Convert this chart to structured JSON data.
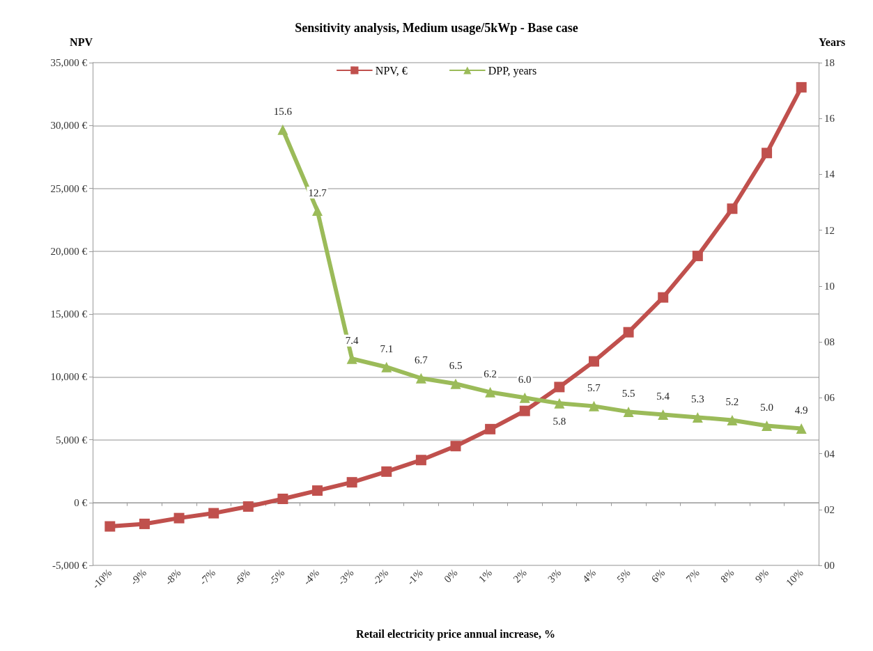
{
  "chart_data": {
    "type": "line",
    "title": "Sensitivity analysis, Medium usage/5kWp - Base case",
    "xlabel": "Retail electricity price annual increase, %",
    "ylabel": "NPV",
    "y2label": "Years",
    "categories": [
      "-10%",
      "-9%",
      "-8%",
      "-7%",
      "-6%",
      "-5%",
      "-4%",
      "-3%",
      "-2%",
      "-1%",
      "0%",
      "1%",
      "2%",
      "3%",
      "4%",
      "5%",
      "6%",
      "7%",
      "8%",
      "9%",
      "10%"
    ],
    "series": [
      {
        "name": "NPV, €",
        "color": "#c0504d",
        "marker": "square",
        "values": [
          -1900,
          -1700,
          -1240,
          -850,
          -320,
          290,
          950,
          1610,
          2460,
          3380,
          4490,
          5840,
          7290,
          9190,
          11230,
          13550,
          16320,
          19620,
          23380,
          27810,
          33040
        ]
      },
      {
        "name": "DPP, years",
        "color": "#9bbb59",
        "marker": "triangle",
        "axis": "y2",
        "values": [
          null,
          null,
          null,
          null,
          null,
          15.6,
          12.7,
          7.4,
          7.1,
          6.7,
          6.5,
          6.2,
          6.0,
          5.8,
          5.7,
          5.5,
          5.4,
          5.3,
          5.2,
          5.0,
          4.9
        ],
        "value_labels": [
          null,
          null,
          null,
          null,
          null,
          "15.6",
          "12.7",
          "7.4",
          "7.1",
          "6.7",
          "6.5",
          "6.2",
          "6.0",
          "5.8",
          "5.7",
          "5.5",
          "5.4",
          "5.3",
          "5.2",
          "5.0",
          "4.9"
        ]
      }
    ],
    "ylim": [
      -5000,
      35000
    ],
    "yticks": [
      {
        "value": -5000,
        "label": "-5,000 €"
      },
      {
        "value": 0,
        "label": "0 €"
      },
      {
        "value": 5000,
        "label": "5,000 €"
      },
      {
        "value": 10000,
        "label": "10,000 €"
      },
      {
        "value": 15000,
        "label": "15,000 €"
      },
      {
        "value": 20000,
        "label": "20,000 €"
      },
      {
        "value": 25000,
        "label": "25,000 €"
      },
      {
        "value": 30000,
        "label": "30,000 €"
      },
      {
        "value": 35000,
        "label": "35,000 €"
      }
    ],
    "y2lim": [
      0,
      18
    ],
    "y2ticks": [
      {
        "value": 0,
        "label": "00"
      },
      {
        "value": 2,
        "label": "02"
      },
      {
        "value": 4,
        "label": "04"
      },
      {
        "value": 6,
        "label": "06"
      },
      {
        "value": 8,
        "label": "08"
      },
      {
        "value": 10,
        "label": "10"
      },
      {
        "value": 12,
        "label": "12"
      },
      {
        "value": 14,
        "label": "14"
      },
      {
        "value": 16,
        "label": "16"
      },
      {
        "value": 18,
        "label": "18"
      }
    ],
    "grid": "y",
    "legend": "top",
    "line_style": "solid"
  }
}
